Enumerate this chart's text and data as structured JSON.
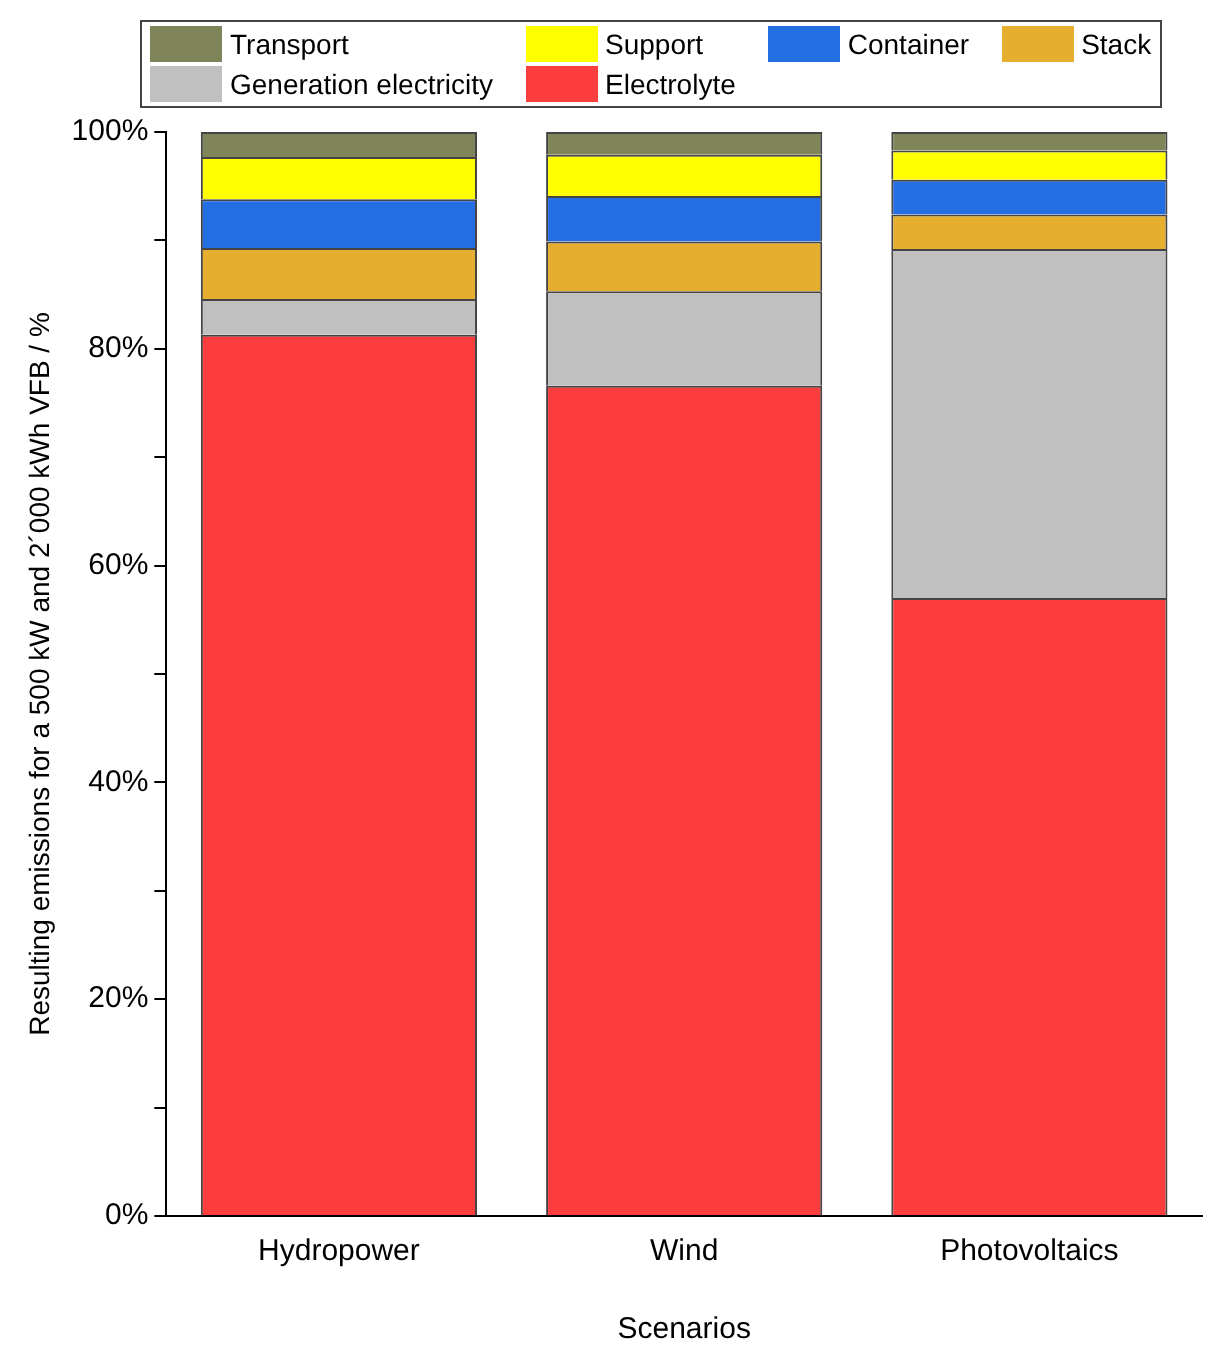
{
  "chart_data": {
    "type": "bar",
    "stacked": true,
    "xlabel": "Scenarios",
    "ylabel": "Resulting emissions for a 500 kW and 2´000 kWh VFB / %",
    "categories": [
      "Hydropower",
      "Wind",
      "Photovoltaics"
    ],
    "series": [
      {
        "name": "Electrolyte",
        "color": "#fb3d3d",
        "values": [
          81.3,
          76.6,
          57.0
        ]
      },
      {
        "name": "Generation electricity",
        "color": "#c0c0c0",
        "values": [
          3.3,
          8.7,
          32.2
        ]
      },
      {
        "name": "Stack",
        "color": "#e5ae2f",
        "values": [
          4.7,
          4.6,
          3.2
        ]
      },
      {
        "name": "Container",
        "color": "#246ee4",
        "values": [
          4.5,
          4.2,
          3.2
        ]
      },
      {
        "name": "Support",
        "color": "#ffff00",
        "values": [
          3.9,
          3.8,
          2.7
        ]
      },
      {
        "name": "Transport",
        "color": "#7f8558",
        "values": [
          2.3,
          2.1,
          1.7
        ]
      }
    ],
    "ylim": [
      0,
      100
    ],
    "yticks": [
      {
        "value": 0,
        "label": "0%"
      },
      {
        "value": 10,
        "label": null
      },
      {
        "value": 20,
        "label": "20%"
      },
      {
        "value": 30,
        "label": null
      },
      {
        "value": 40,
        "label": "40%"
      },
      {
        "value": 50,
        "label": null
      },
      {
        "value": 60,
        "label": "60%"
      },
      {
        "value": 70,
        "label": null
      },
      {
        "value": 80,
        "label": "80%"
      },
      {
        "value": 90,
        "label": null
      },
      {
        "value": 100,
        "label": "100%"
      }
    ],
    "grid": false,
    "legend": "top"
  }
}
